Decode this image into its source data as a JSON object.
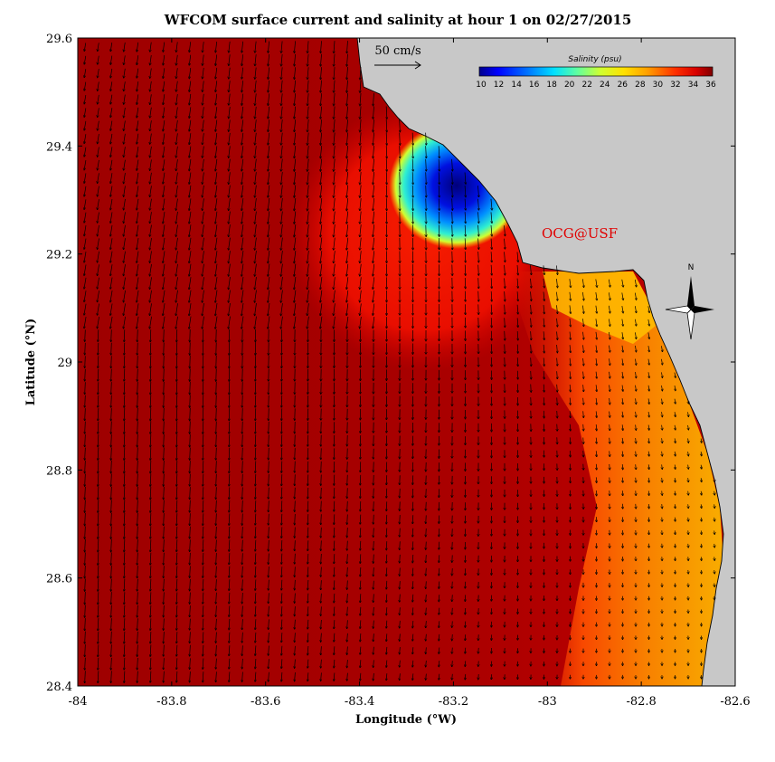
{
  "title": "WFCOM surface current and salinity at hour 1 on 02/27/2015",
  "brand": "OCG@USF",
  "scale_label": "50 cm/s",
  "compass_label": "N",
  "colorbar": {
    "title": "Salinity (psu)",
    "min": 10,
    "max": 36,
    "ticks": [
      "10",
      "12",
      "14",
      "16",
      "18",
      "20",
      "22",
      "24",
      "26",
      "28",
      "30",
      "32",
      "34",
      "36"
    ]
  },
  "map": {
    "xlabel": "Longitude (°W)",
    "ylabel": "Latitude (°N)",
    "xlim": [
      -84,
      -82.6
    ],
    "ylim": [
      28.4,
      29.6
    ],
    "xticks": [
      "-84",
      "-83.8",
      "-83.6",
      "-83.4",
      "-83.2",
      "-83",
      "-82.8",
      "-82.6"
    ],
    "yticks": [
      "28.4",
      "28.6",
      "28.8",
      "29",
      "29.2",
      "29.4",
      "29.6"
    ],
    "land_color": "#c8c8c8",
    "ocean_color": "#a80000"
  }
}
